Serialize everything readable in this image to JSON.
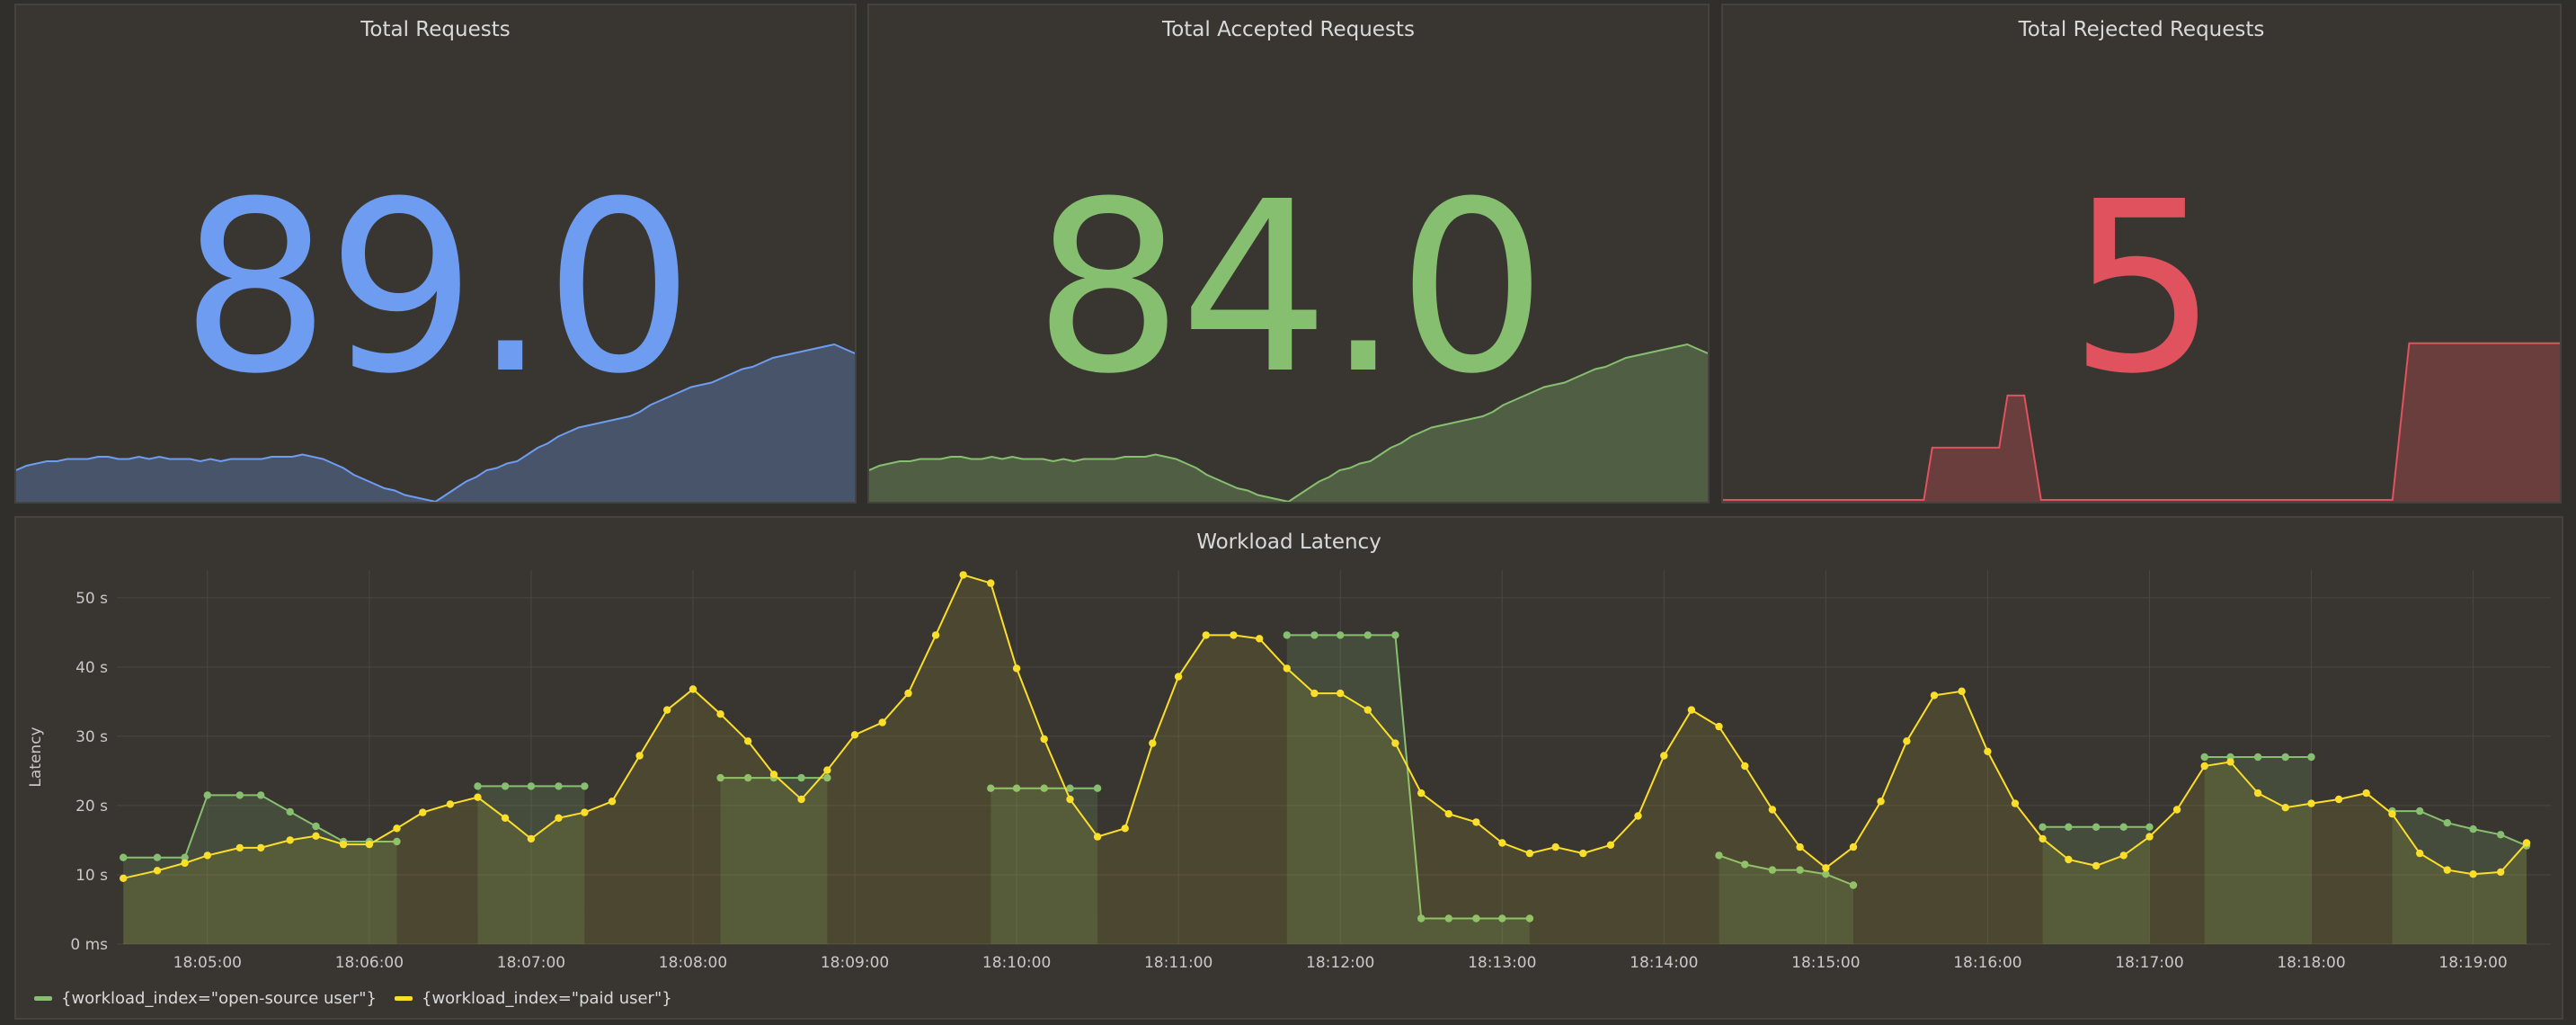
{
  "panels": {
    "total_requests": {
      "title": "Total Requests",
      "value": "89.0",
      "color": "#6e9cf0",
      "spark": [
        14,
        16,
        17,
        18,
        18,
        19,
        19,
        19,
        20,
        20,
        19,
        19,
        20,
        19,
        20,
        19,
        19,
        19,
        18,
        19,
        18,
        19,
        19,
        19,
        19,
        20,
        20,
        20,
        21,
        20,
        19,
        17,
        15,
        12,
        10,
        8,
        6,
        5,
        3,
        2,
        1,
        0,
        3,
        6,
        9,
        11,
        14,
        15,
        17,
        18,
        21,
        24,
        26,
        29,
        31,
        33,
        34,
        35,
        36,
        37,
        38,
        40,
        43,
        45,
        47,
        49,
        51,
        52,
        53,
        55,
        57,
        59,
        60,
        62,
        64,
        65,
        66,
        67,
        68,
        69,
        70,
        68,
        66
      ]
    },
    "total_accepted": {
      "title": "Total Accepted Requests",
      "value": "84.0",
      "color": "#87bf70",
      "spark": [
        14,
        16,
        17,
        18,
        18,
        19,
        19,
        19,
        20,
        20,
        19,
        19,
        20,
        19,
        20,
        19,
        19,
        19,
        18,
        19,
        18,
        19,
        19,
        19,
        19,
        20,
        20,
        20,
        21,
        20,
        19,
        17,
        15,
        12,
        10,
        8,
        6,
        5,
        3,
        2,
        1,
        0,
        3,
        6,
        9,
        11,
        14,
        15,
        17,
        18,
        21,
        24,
        26,
        29,
        31,
        33,
        34,
        35,
        36,
        37,
        38,
        40,
        43,
        45,
        47,
        49,
        51,
        52,
        53,
        55,
        57,
        59,
        60,
        62,
        64,
        65,
        66,
        67,
        68,
        69,
        70,
        68,
        66
      ]
    },
    "total_rejected": {
      "title": "Total Rejected Requests",
      "value": "5",
      "color": "#e0525e",
      "spark": [
        [
          0,
          0
        ],
        [
          24,
          0
        ],
        [
          25,
          1
        ],
        [
          33,
          1
        ],
        [
          34,
          2
        ],
        [
          36,
          2
        ],
        [
          38,
          0
        ],
        [
          80,
          0
        ],
        [
          82,
          3
        ],
        [
          100,
          3
        ]
      ]
    }
  },
  "chart_data": {
    "type": "line",
    "title": "Workload Latency",
    "ylabel": "Latency",
    "ylim": [
      0,
      54
    ],
    "y_ticks": [
      {
        "v": 0,
        "label": "0 ms"
      },
      {
        "v": 10,
        "label": "10 s"
      },
      {
        "v": 20,
        "label": "20 s"
      },
      {
        "v": 30,
        "label": "30 s"
      },
      {
        "v": 40,
        "label": "40 s"
      },
      {
        "v": 50,
        "label": "50 s"
      }
    ],
    "x_range_minutes": [
      4.44,
      19.48
    ],
    "x_ticks": [
      "18:05:00",
      "18:06:00",
      "18:07:00",
      "18:08:00",
      "18:09:00",
      "18:10:00",
      "18:11:00",
      "18:12:00",
      "18:13:00",
      "18:14:00",
      "18:15:00",
      "18:16:00",
      "18:17:00",
      "18:18:00",
      "18:19:00"
    ],
    "x_tick_minutes": [
      5,
      6,
      7,
      8,
      9,
      10,
      11,
      12,
      13,
      14,
      15,
      16,
      17,
      18,
      19
    ],
    "grid": true,
    "legend_position": "bottom-left",
    "series": [
      {
        "name": "{workload_index=\"open-source user\"}",
        "color": "#87bf70",
        "segments": [
          [
            [
              4.48,
              12.5
            ],
            [
              4.69,
              12.5
            ],
            [
              4.86,
              12.5
            ],
            [
              5.0,
              21.5
            ],
            [
              5.2,
              21.5
            ],
            [
              5.33,
              21.5
            ],
            [
              5.51,
              19.1
            ],
            [
              5.67,
              17
            ],
            [
              5.84,
              14.8
            ],
            [
              6.0,
              14.8
            ],
            [
              6.17,
              14.8
            ]
          ],
          [
            [
              6.67,
              22.8
            ],
            [
              6.84,
              22.8
            ],
            [
              7.0,
              22.8
            ],
            [
              7.17,
              22.8
            ],
            [
              7.33,
              22.8
            ]
          ],
          [
            [
              8.17,
              24
            ],
            [
              8.34,
              24
            ],
            [
              8.5,
              24
            ],
            [
              8.67,
              24
            ],
            [
              8.83,
              24
            ]
          ],
          [
            [
              9.84,
              22.5
            ],
            [
              10.0,
              22.5
            ],
            [
              10.17,
              22.5
            ],
            [
              10.33,
              22.5
            ],
            [
              10.5,
              22.5
            ]
          ],
          [
            [
              11.67,
              44.6
            ],
            [
              11.84,
              44.6
            ],
            [
              12.0,
              44.6
            ],
            [
              12.17,
              44.6
            ],
            [
              12.34,
              44.6
            ],
            [
              12.5,
              3.7
            ],
            [
              12.67,
              3.7
            ],
            [
              12.84,
              3.7
            ],
            [
              13.0,
              3.7
            ],
            [
              13.17,
              3.7
            ]
          ],
          [
            [
              14.34,
              12.8
            ],
            [
              14.5,
              11.5
            ],
            [
              14.67,
              10.7
            ],
            [
              14.84,
              10.7
            ],
            [
              15.0,
              10.1
            ],
            [
              15.17,
              8.5
            ]
          ],
          [
            [
              16.34,
              16.9
            ],
            [
              16.5,
              16.9
            ],
            [
              16.67,
              16.9
            ],
            [
              16.84,
              16.9
            ],
            [
              17.0,
              16.9
            ]
          ],
          [
            [
              17.34,
              27
            ],
            [
              17.5,
              27
            ],
            [
              17.67,
              27
            ],
            [
              17.84,
              27
            ],
            [
              18.0,
              27
            ]
          ],
          [
            [
              18.5,
              19.2
            ],
            [
              18.67,
              19.2
            ],
            [
              18.84,
              17.5
            ],
            [
              19.0,
              16.6
            ],
            [
              19.17,
              15.8
            ],
            [
              19.33,
              14.2
            ]
          ]
        ]
      },
      {
        "name": "{workload_index=\"paid user\"}",
        "color": "#fade2a",
        "segments": [
          [
            [
              4.48,
              9.5
            ],
            [
              4.69,
              10.6
            ],
            [
              4.86,
              11.7
            ],
            [
              5.0,
              12.8
            ],
            [
              5.2,
              13.9
            ],
            [
              5.33,
              13.9
            ],
            [
              5.51,
              15.0
            ],
            [
              5.67,
              15.6
            ],
            [
              5.84,
              14.4
            ],
            [
              6.0,
              14.4
            ],
            [
              6.17,
              16.7
            ],
            [
              6.33,
              19.0
            ],
            [
              6.5,
              20.2
            ],
            [
              6.67,
              21.2
            ],
            [
              6.84,
              18.2
            ],
            [
              7.0,
              15.2
            ],
            [
              7.17,
              18.2
            ],
            [
              7.33,
              19.0
            ],
            [
              7.5,
              20.6
            ],
            [
              7.67,
              27.2
            ],
            [
              7.84,
              33.8
            ],
            [
              8.0,
              36.8
            ],
            [
              8.17,
              33.2
            ],
            [
              8.34,
              29.3
            ],
            [
              8.5,
              24.5
            ],
            [
              8.67,
              20.9
            ],
            [
              8.83,
              25.1
            ],
            [
              9.0,
              30.2
            ],
            [
              9.17,
              32.0
            ],
            [
              9.33,
              36.2
            ],
            [
              9.5,
              44.6
            ],
            [
              9.67,
              53.3
            ],
            [
              9.84,
              52.1
            ],
            [
              10.0,
              39.8
            ],
            [
              10.17,
              29.6
            ],
            [
              10.33,
              20.9
            ],
            [
              10.5,
              15.5
            ],
            [
              10.67,
              16.7
            ],
            [
              10.84,
              29.0
            ],
            [
              11.0,
              38.6
            ],
            [
              11.17,
              44.6
            ],
            [
              11.34,
              44.6
            ],
            [
              11.5,
              44.1
            ],
            [
              11.67,
              39.8
            ],
            [
              11.84,
              36.2
            ],
            [
              12.0,
              36.2
            ],
            [
              12.17,
              33.8
            ],
            [
              12.34,
              29.0
            ],
            [
              12.5,
              21.8
            ],
            [
              12.67,
              18.8
            ],
            [
              12.84,
              17.6
            ],
            [
              13.0,
              14.6
            ],
            [
              13.17,
              13.1
            ],
            [
              13.33,
              14.0
            ],
            [
              13.5,
              13.1
            ],
            [
              13.67,
              14.3
            ],
            [
              13.84,
              18.5
            ],
            [
              14.0,
              27.2
            ],
            [
              14.17,
              33.8
            ],
            [
              14.34,
              31.4
            ],
            [
              14.5,
              25.7
            ],
            [
              14.67,
              19.4
            ],
            [
              14.84,
              14.0
            ],
            [
              15.0,
              11.0
            ],
            [
              15.17,
              14.0
            ],
            [
              15.34,
              20.6
            ],
            [
              15.5,
              29.3
            ],
            [
              15.67,
              35.9
            ],
            [
              15.84,
              36.5
            ],
            [
              16.0,
              27.8
            ],
            [
              16.17,
              20.3
            ],
            [
              16.34,
              15.2
            ],
            [
              16.5,
              12.2
            ],
            [
              16.67,
              11.3
            ],
            [
              16.84,
              12.8
            ],
            [
              17.0,
              15.5
            ],
            [
              17.17,
              19.4
            ],
            [
              17.34,
              25.7
            ],
            [
              17.5,
              26.3
            ],
            [
              17.67,
              21.8
            ],
            [
              17.84,
              19.7
            ],
            [
              18.0,
              20.3
            ],
            [
              18.17,
              20.9
            ],
            [
              18.34,
              21.8
            ],
            [
              18.5,
              18.8
            ],
            [
              18.67,
              13.1
            ],
            [
              18.84,
              10.7
            ],
            [
              19.0,
              10.1
            ],
            [
              19.17,
              10.4
            ],
            [
              19.33,
              14.6
            ]
          ]
        ]
      }
    ],
    "shaded_bands": [
      [
        4.48,
        4.86
      ],
      [
        5.0,
        6.17
      ],
      [
        6.67,
        7.33
      ],
      [
        8.17,
        8.83
      ],
      [
        9.84,
        10.5
      ],
      [
        11.67,
        12.34
      ],
      [
        14.34,
        15.17
      ],
      [
        16.34,
        17.0
      ],
      [
        17.34,
        18.0
      ],
      [
        18.5,
        19.33
      ]
    ]
  }
}
